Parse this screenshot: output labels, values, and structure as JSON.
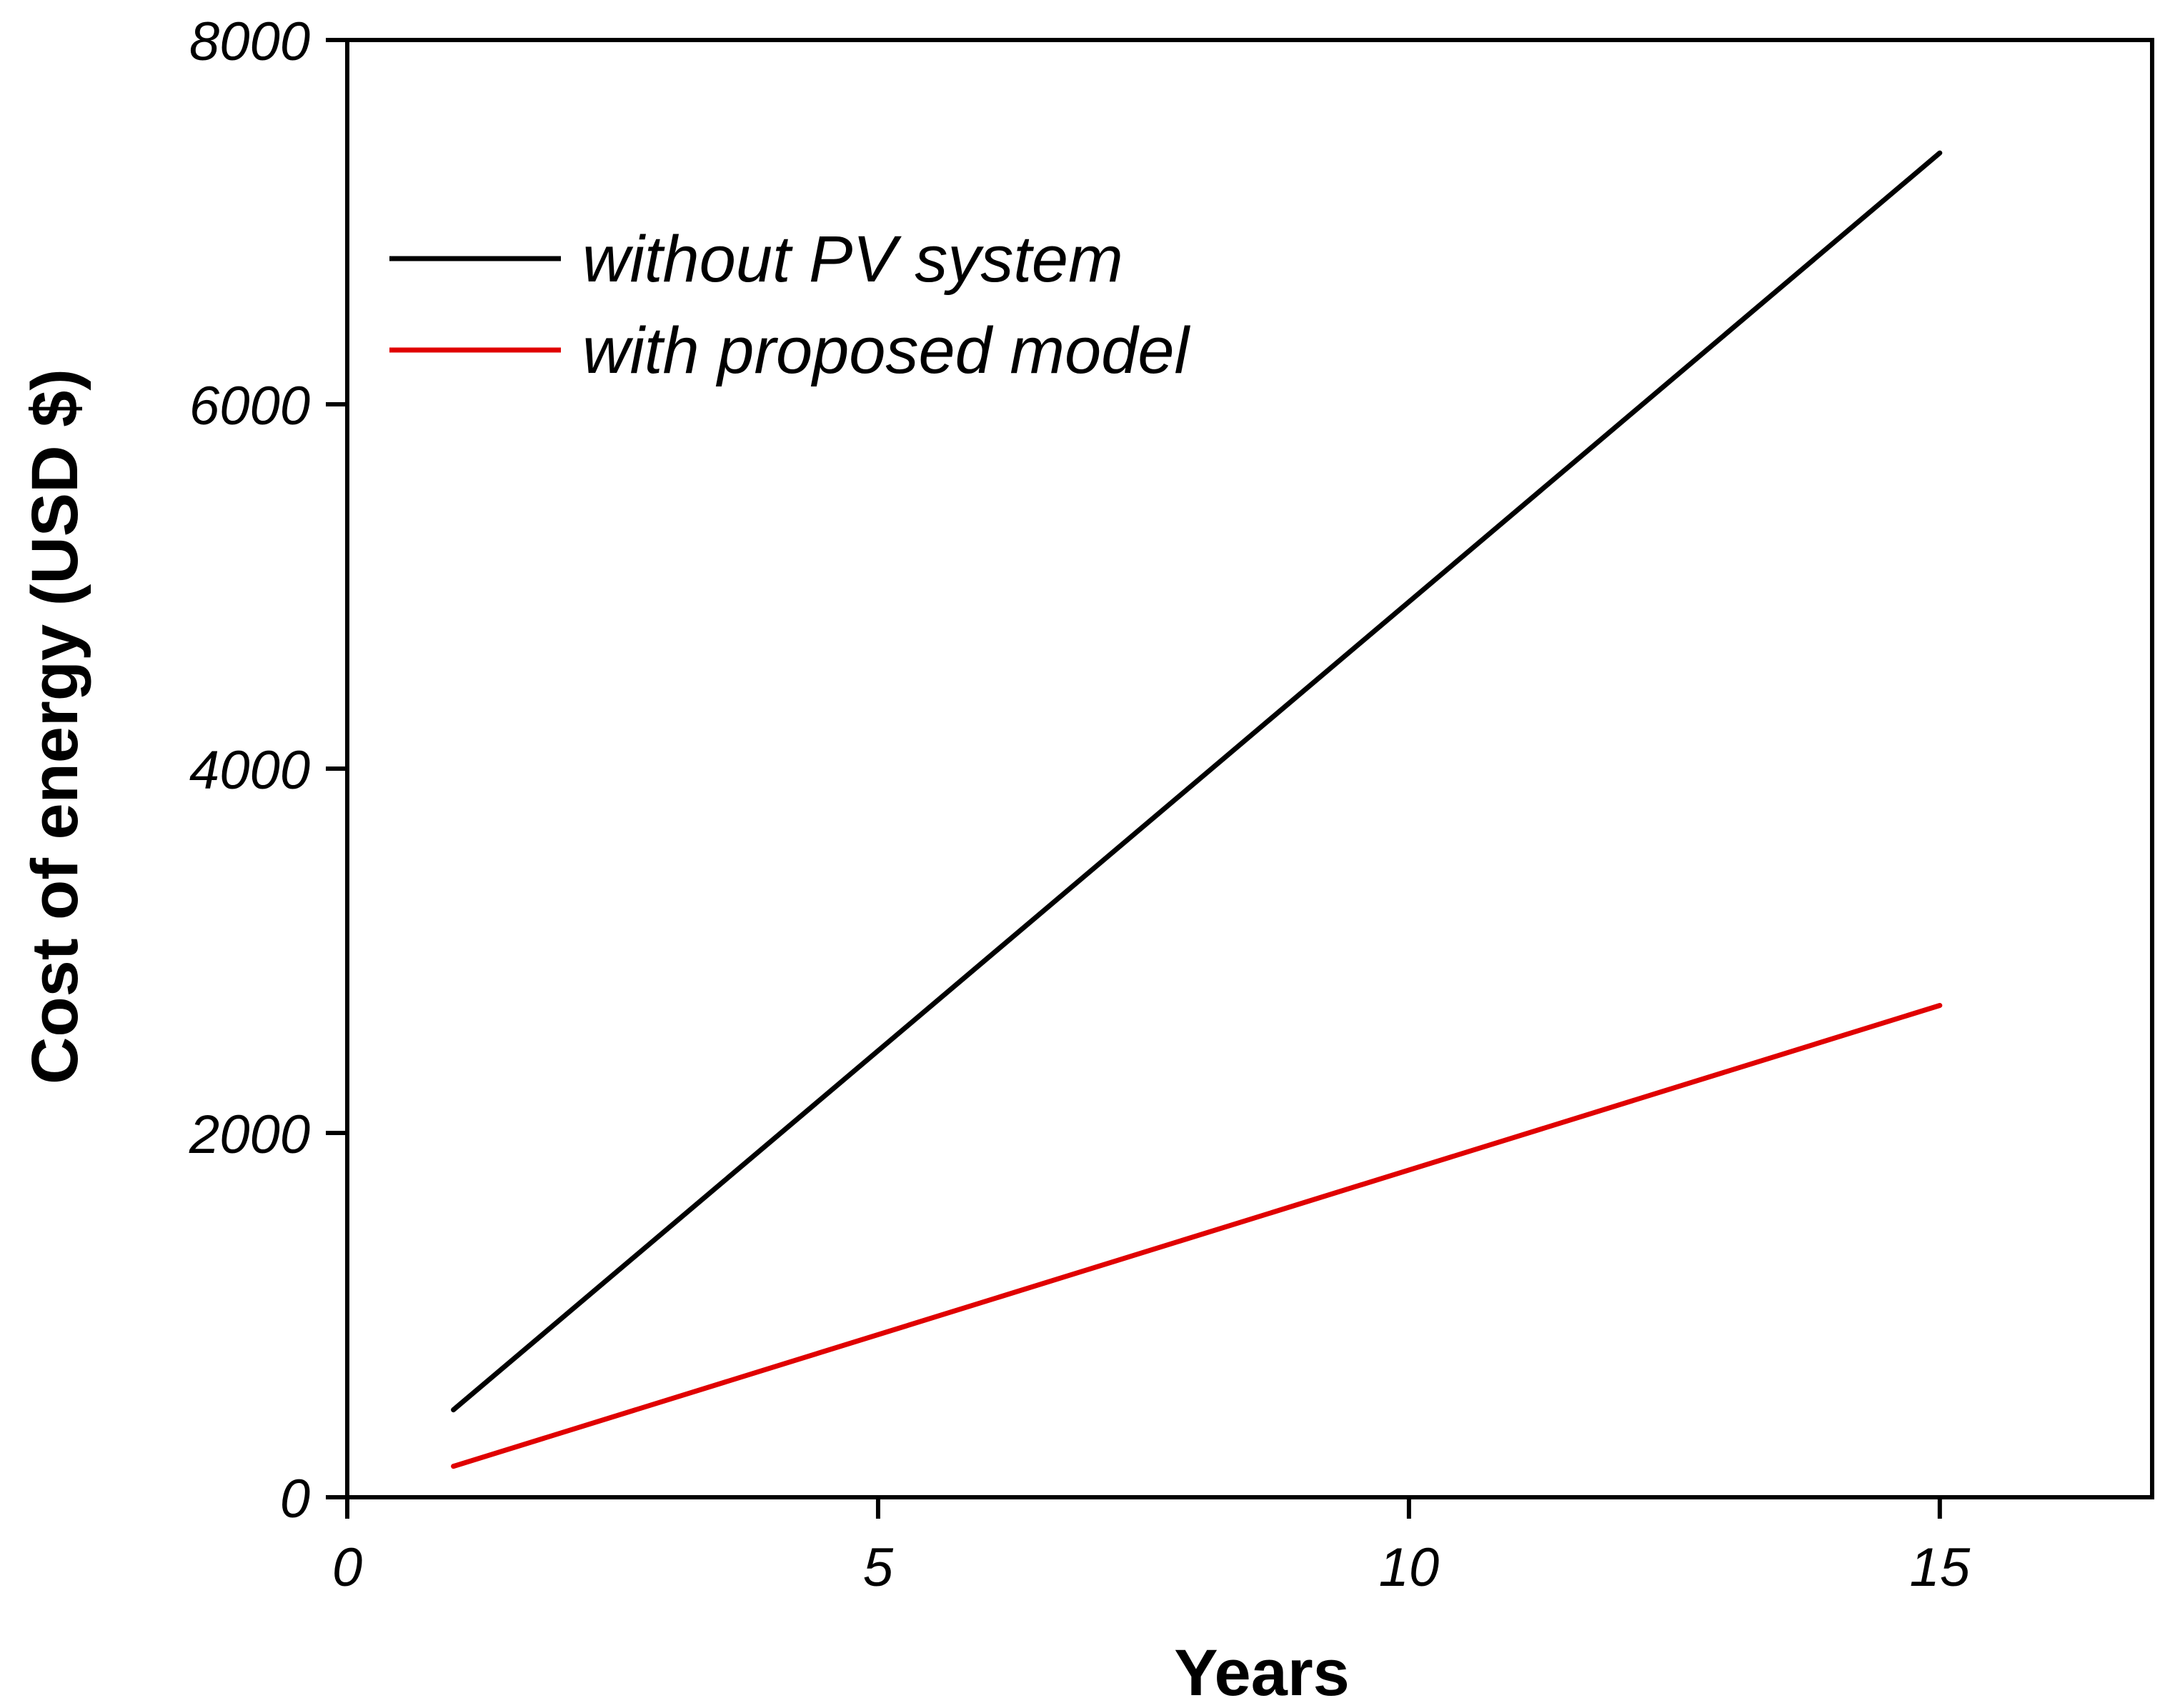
{
  "chart_data": {
    "type": "line",
    "title": "",
    "xlabel": "Years",
    "ylabel": "Cost of energy (USD $)",
    "xlim": [
      0,
      17
    ],
    "ylim": [
      0,
      8000
    ],
    "xticks": [
      0,
      5,
      10,
      15
    ],
    "yticks": [
      0,
      2000,
      4000,
      6000,
      8000
    ],
    "grid": false,
    "legend_position": "top-left",
    "series": [
      {
        "name": "without PV system",
        "color": "#000000",
        "x": [
          1,
          15
        ],
        "y": [
          480,
          7380
        ]
      },
      {
        "name": "with proposed model",
        "color": "#e00000",
        "x": [
          1,
          15
        ],
        "y": [
          170,
          2700
        ]
      }
    ]
  }
}
